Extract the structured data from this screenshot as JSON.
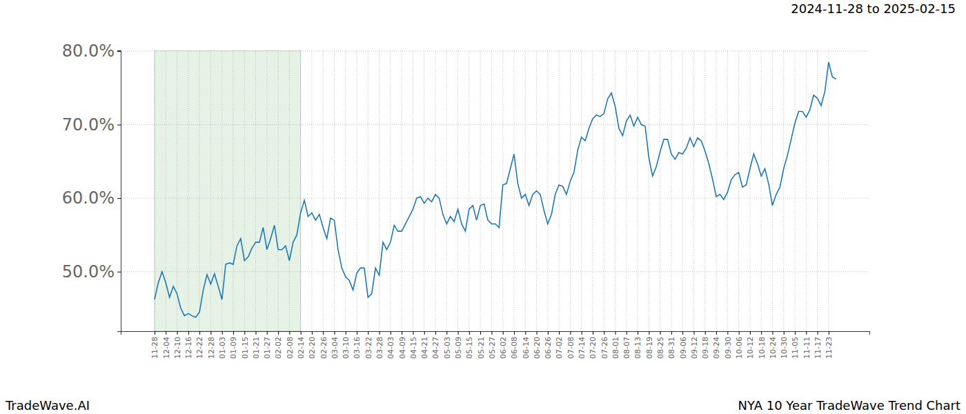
{
  "chart_data": {
    "type": "line",
    "title": "2024-11-28 to 2025-02-15",
    "annotations": [
      "TradeWave.AI",
      "NYA 10 Year TradeWave Trend Chart"
    ],
    "categories": [
      "11-28",
      null,
      null,
      "12-04",
      null,
      null,
      "12-10",
      null,
      null,
      "12-16",
      null,
      null,
      "12-22",
      null,
      null,
      "12-28",
      null,
      null,
      "01-03",
      null,
      null,
      "01-09",
      null,
      null,
      "01-15",
      null,
      null,
      "01-21",
      null,
      null,
      "01-27",
      null,
      null,
      "02-02",
      null,
      null,
      "02-08",
      null,
      null,
      "02-14",
      null,
      null,
      "02-20",
      null,
      null,
      "02-26",
      null,
      null,
      "03-04",
      null,
      null,
      "03-10",
      null,
      null,
      "03-16",
      null,
      null,
      "03-22",
      null,
      null,
      "03-28",
      null,
      null,
      "04-03",
      null,
      null,
      "04-09",
      null,
      null,
      "04-15",
      null,
      null,
      "04-21",
      null,
      null,
      "04-27",
      null,
      null,
      "05-03",
      null,
      null,
      "05-09",
      null,
      null,
      "05-15",
      null,
      null,
      "05-21",
      null,
      null,
      "05-27",
      null,
      null,
      "06-02",
      null,
      null,
      "06-08",
      null,
      null,
      "06-14",
      null,
      null,
      "06-20",
      null,
      null,
      "06-26",
      null,
      null,
      "07-02",
      null,
      null,
      "07-08",
      null,
      null,
      "07-14",
      null,
      null,
      "07-20",
      null,
      null,
      "07-26",
      null,
      null,
      "08-01",
      null,
      null,
      "08-07",
      null,
      null,
      "08-13",
      null,
      null,
      "08-19",
      null,
      null,
      "08-25",
      null,
      null,
      "08-31",
      null,
      null,
      "09-06",
      null,
      null,
      "09-12",
      null,
      null,
      "09-18",
      null,
      null,
      "09-24",
      null,
      null,
      "09-30",
      null,
      null,
      "10-06",
      null,
      null,
      "10-12",
      null,
      null,
      "10-18",
      null,
      null,
      "10-24",
      null,
      null,
      "10-30",
      null,
      null,
      "11-05",
      null,
      null,
      "11-11",
      null,
      null,
      "11-17",
      null,
      null,
      "11-23",
      null,
      null
    ],
    "values": [
      46.2,
      48.5,
      50,
      48.5,
      46.5,
      48,
      47,
      45,
      44,
      44.3,
      44,
      43.8,
      44.5,
      47.5,
      49.6,
      48.3,
      49.7,
      48,
      46.2,
      51,
      51.2,
      51,
      53.5,
      54.5,
      51.5,
      52,
      53.2,
      54,
      54,
      56,
      53,
      54.5,
      56.3,
      53,
      53,
      53.5,
      51.5,
      54,
      55,
      58,
      59.7,
      57.5,
      58,
      57,
      57.8,
      56,
      54.5,
      57.3,
      57,
      53,
      50.5,
      49.3,
      48.8,
      47.5,
      49.8,
      50.5,
      50.5,
      46.5,
      47,
      50.5,
      49.5,
      54,
      53,
      54,
      56.3,
      55.5,
      55.5,
      56.5,
      57.5,
      58.5,
      60,
      60.2,
      59.3,
      60,
      59.5,
      60.5,
      60,
      57.8,
      56.5,
      57.5,
      56.8,
      58.5,
      56.5,
      55.5,
      58.5,
      59,
      57,
      59,
      59.2,
      57,
      56.5,
      56.5,
      56,
      61.8,
      62,
      64,
      66,
      62,
      60,
      60.5,
      59,
      60.5,
      61,
      60.5,
      58.3,
      56.5,
      57.8,
      60.5,
      61.8,
      61.6,
      60.5,
      62.3,
      63.5,
      66.5,
      68.3,
      67.8,
      69.5,
      70.8,
      71.3,
      71.1,
      71.5,
      73.5,
      74.3,
      72.5,
      69.5,
      68.5,
      70.5,
      71.3,
      69.8,
      71,
      70,
      69.8,
      65.5,
      63,
      64.3,
      66.3,
      68,
      68,
      66,
      65.3,
      66.2,
      66,
      66.8,
      68.2,
      67,
      68.2,
      67.8,
      66.4,
      64.7,
      62.6,
      60.2,
      60.5,
      59.8,
      60.8,
      62.5,
      63.2,
      63.5,
      61.5,
      61.8,
      64,
      66,
      64.7,
      63,
      64,
      61.9,
      59,
      60.5,
      61.5,
      64,
      65.8,
      68,
      70.2,
      71.8,
      71.8,
      71,
      72,
      74,
      73.6,
      72.6,
      74.5,
      78.5,
      76.5,
      76.2
    ],
    "color": "#1f77b4",
    "ylim": [
      41.9,
      80.1
    ],
    "yticks": [
      {
        "value": 50,
        "label": "50.0%"
      },
      {
        "value": 60,
        "label": "60.0%"
      },
      {
        "value": 70,
        "label": "70.0%"
      },
      {
        "value": 80,
        "label": "80.0%"
      }
    ],
    "grid": true,
    "highlight": {
      "from": "11-28",
      "to": "02-14"
    }
  }
}
